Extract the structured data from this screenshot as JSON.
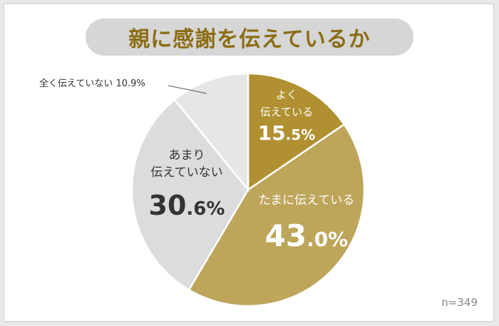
{
  "chart_data": {
    "type": "pie",
    "title": "親に感謝を伝えているか",
    "note": "n=349",
    "unit": "%",
    "start_angle": "12 o'clock, clockwise",
    "slices": [
      {
        "label": "よく伝えている",
        "lines": [
          "よく",
          "伝えている"
        ],
        "value": 15.5,
        "value_int": "15",
        "value_dec": ".5%",
        "color": "#b09030",
        "label_color": "#ffffff"
      },
      {
        "label": "たまに伝えている",
        "lines": [
          "たまに伝えている"
        ],
        "value": 43.0,
        "value_int": "43",
        "value_dec": ".0%",
        "color": "#bda55a",
        "label_color": "#ffffff"
      },
      {
        "label": "あまり伝えていない",
        "lines": [
          "あまり",
          "伝えていない"
        ],
        "value": 30.6,
        "value_int": "30",
        "value_dec": ".6%",
        "color": "#dcdcdc",
        "label_color": "#333333"
      },
      {
        "label": "全く伝えていない",
        "lines": [
          "全く伝えていない 10.9%"
        ],
        "value": 10.9,
        "color": "#e6e6e6",
        "label_color": "#333333",
        "outside": true
      }
    ]
  }
}
